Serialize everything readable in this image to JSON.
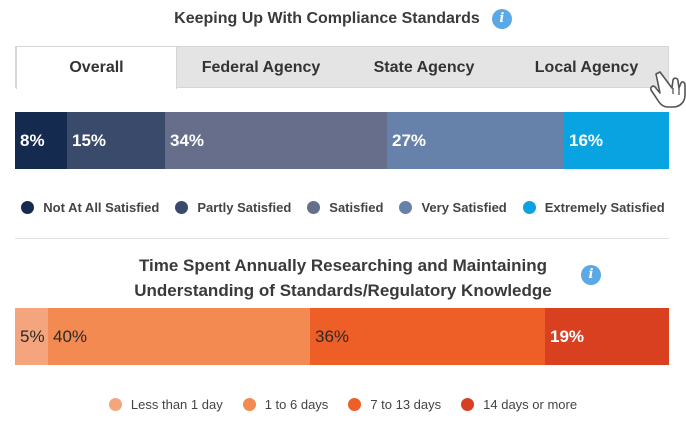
{
  "section1": {
    "title": "Keeping Up With Compliance Standards",
    "info_glyph": "i",
    "tabs": [
      {
        "label": "Overall",
        "active": true
      },
      {
        "label": "Federal Agency",
        "active": false
      },
      {
        "label": "State Agency",
        "active": false
      },
      {
        "label": "Local Agency",
        "active": false
      }
    ]
  },
  "section2": {
    "title_line1": "Time Spent Annually Researching and Maintaining",
    "title_line2": "Understanding of Standards/Regulatory Knowledge",
    "info_glyph": "i"
  },
  "icons": {
    "info": "info-icon",
    "pointer": "pointer-hand-icon"
  },
  "chart_data": [
    {
      "type": "bar",
      "title": "Keeping Up With Compliance Standards",
      "stacked": true,
      "orientation": "horizontal",
      "unit": "%",
      "categories": [
        "Not At All Satisfied",
        "Partly Satisfied",
        "Satisfied",
        "Very Satisfied",
        "Extremely Satisfied"
      ],
      "values": [
        8,
        15,
        34,
        27,
        16
      ],
      "labels": [
        "8%",
        "15%",
        "34%",
        "27%",
        "16%"
      ],
      "colors": [
        "#152a4f",
        "#3a4a6b",
        "#666e8c",
        "#6782aa",
        "#0aa3e2"
      ],
      "legend_position": "bottom"
    },
    {
      "type": "bar",
      "title": "Time Spent Annually Researching and Maintaining Understanding of Standards/Regulatory Knowledge",
      "stacked": true,
      "orientation": "horizontal",
      "unit": "%",
      "categories": [
        "Less than 1 day",
        "1 to 6 days",
        "7 to 13 days",
        "14 days or more"
      ],
      "values": [
        5,
        40,
        36,
        19
      ],
      "labels": [
        "5%",
        "40%",
        "36%",
        "19%"
      ],
      "colors": [
        "#f4a57e",
        "#f28a52",
        "#ee5f27",
        "#d8401f"
      ],
      "legend_position": "bottom"
    }
  ]
}
